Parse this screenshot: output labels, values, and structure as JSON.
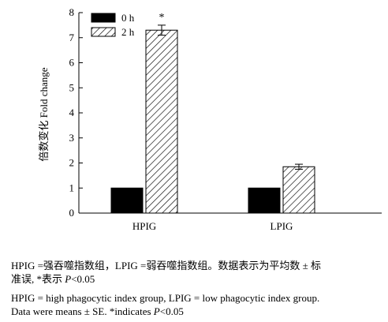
{
  "chart_data": {
    "type": "bar",
    "categories": [
      "HPIG",
      "LPIG"
    ],
    "series": [
      {
        "name": "0 h",
        "values": [
          1.0,
          1.0
        ],
        "errors": [
          0,
          0
        ]
      },
      {
        "name": "2 h",
        "values": [
          7.3,
          1.85
        ],
        "errors": [
          0.2,
          0.1
        ]
      }
    ],
    "annotations": [
      {
        "category": "HPIG",
        "series": "2 h",
        "text": "*"
      }
    ],
    "ylabel": "倍数变化 Fold change",
    "xlabel": "",
    "ylim": [
      0,
      8
    ],
    "yticks": [
      0,
      1,
      2,
      3,
      4,
      5,
      6,
      7,
      8
    ],
    "grid": false,
    "legend": "top-left",
    "colors": {
      "0 h": "#000000",
      "2 h": "hatched"
    }
  },
  "caption": {
    "zh_line1": "HPIG =强吞噬指数组，LPIG =弱吞噬指数组。数据表示为平均数 ± 标",
    "zh_line2_a": "准误, *表示 ",
    "zh_line2_p": "P",
    "zh_line2_b": "<0.05",
    "en_line1": "HPIG = high phagocytic index group, LPIG = low phagocytic index group.",
    "en_line2_a": "Data were means ± SE. *indicates ",
    "en_line2_p": "P",
    "en_line2_b": "<0.05"
  }
}
